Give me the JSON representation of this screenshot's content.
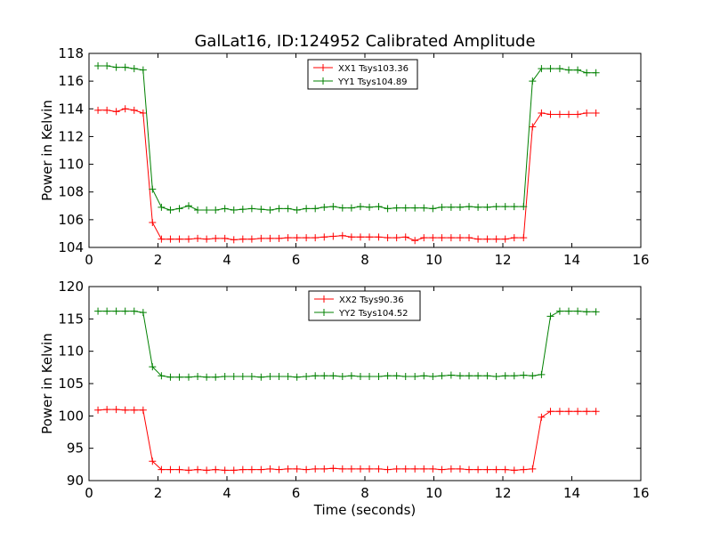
{
  "figure": {
    "title": "GalLat16, ID:124952 Calibrated Amplitude",
    "xlabel": "Time (seconds)"
  },
  "chart_data": [
    {
      "type": "line",
      "ylabel": "Power in Kelvin",
      "xlim": [
        0,
        16
      ],
      "ylim": [
        104,
        118
      ],
      "xticks": [
        0,
        2,
        4,
        6,
        8,
        10,
        12,
        14,
        16
      ],
      "yticks": [
        104,
        106,
        108,
        110,
        112,
        114,
        116,
        118
      ],
      "legend_position": "top-center",
      "grid": false,
      "x": [
        0.26,
        0.52,
        0.79,
        1.05,
        1.31,
        1.57,
        1.84,
        2.1,
        2.36,
        2.62,
        2.89,
        3.15,
        3.41,
        3.67,
        3.94,
        4.2,
        4.46,
        4.72,
        4.99,
        5.25,
        5.51,
        5.77,
        6.03,
        6.3,
        6.56,
        6.82,
        7.08,
        7.35,
        7.61,
        7.87,
        8.13,
        8.4,
        8.66,
        8.92,
        9.18,
        9.45,
        9.71,
        9.97,
        10.23,
        10.5,
        10.76,
        11.02,
        11.28,
        11.55,
        11.81,
        12.07,
        12.33,
        12.6,
        12.86,
        13.12,
        13.38,
        13.65,
        13.91,
        14.17,
        14.43,
        14.7
      ],
      "series": [
        {
          "name": "XX1 Tsys103.36",
          "color": "#ff0000",
          "values": [
            113.9,
            113.9,
            113.8,
            114.0,
            113.9,
            113.7,
            105.8,
            104.6,
            104.6,
            104.6,
            104.6,
            104.65,
            104.6,
            104.65,
            104.65,
            104.55,
            104.6,
            104.6,
            104.65,
            104.65,
            104.65,
            104.7,
            104.7,
            104.7,
            104.7,
            104.75,
            104.8,
            104.85,
            104.75,
            104.75,
            104.75,
            104.75,
            104.7,
            104.7,
            104.75,
            104.5,
            104.7,
            104.7,
            104.7,
            104.7,
            104.7,
            104.7,
            104.6,
            104.6,
            104.6,
            104.6,
            104.7,
            104.7,
            112.7,
            113.7,
            113.6,
            113.6,
            113.6,
            113.6,
            113.7,
            113.7
          ]
        },
        {
          "name": "YY1 Tsys104.89",
          "color": "#008000",
          "values": [
            117.1,
            117.1,
            117.0,
            117.0,
            116.9,
            116.8,
            108.2,
            106.9,
            106.7,
            106.8,
            107.0,
            106.7,
            106.7,
            106.7,
            106.8,
            106.7,
            106.75,
            106.8,
            106.75,
            106.7,
            106.8,
            106.8,
            106.7,
            106.8,
            106.8,
            106.9,
            106.95,
            106.85,
            106.85,
            106.95,
            106.9,
            106.95,
            106.8,
            106.85,
            106.85,
            106.85,
            106.85,
            106.8,
            106.9,
            106.9,
            106.9,
            106.95,
            106.9,
            106.9,
            106.95,
            106.95,
            106.95,
            106.95,
            116.0,
            116.9,
            116.9,
            116.9,
            116.8,
            116.8,
            116.6,
            116.6
          ]
        }
      ]
    },
    {
      "type": "line",
      "ylabel": "Power in Kelvin",
      "xlabel": "Time (seconds)",
      "xlim": [
        0,
        16
      ],
      "ylim": [
        90,
        120
      ],
      "xticks": [
        0,
        2,
        4,
        6,
        8,
        10,
        12,
        14,
        16
      ],
      "yticks": [
        90,
        95,
        100,
        105,
        110,
        115,
        120
      ],
      "legend_position": "top-center",
      "grid": false,
      "x": [
        0.26,
        0.52,
        0.79,
        1.05,
        1.31,
        1.57,
        1.84,
        2.1,
        2.36,
        2.62,
        2.89,
        3.15,
        3.41,
        3.67,
        3.94,
        4.2,
        4.46,
        4.72,
        4.99,
        5.25,
        5.51,
        5.77,
        6.03,
        6.3,
        6.56,
        6.82,
        7.08,
        7.35,
        7.61,
        7.87,
        8.13,
        8.4,
        8.66,
        8.92,
        9.18,
        9.45,
        9.71,
        9.97,
        10.23,
        10.5,
        10.76,
        11.02,
        11.28,
        11.55,
        11.81,
        12.07,
        12.33,
        12.6,
        12.86,
        13.12,
        13.38,
        13.65,
        13.91,
        14.17,
        14.43,
        14.7
      ],
      "series": [
        {
          "name": "XX2 Tsys90.36",
          "color": "#ff0000",
          "values": [
            100.9,
            101.0,
            101.0,
            100.9,
            100.9,
            100.9,
            93.0,
            91.7,
            91.7,
            91.7,
            91.6,
            91.7,
            91.6,
            91.7,
            91.6,
            91.6,
            91.7,
            91.7,
            91.7,
            91.8,
            91.7,
            91.8,
            91.8,
            91.7,
            91.8,
            91.8,
            91.9,
            91.8,
            91.8,
            91.8,
            91.8,
            91.8,
            91.7,
            91.8,
            91.8,
            91.8,
            91.8,
            91.8,
            91.7,
            91.8,
            91.8,
            91.7,
            91.7,
            91.7,
            91.7,
            91.7,
            91.6,
            91.7,
            91.8,
            99.8,
            100.7,
            100.7,
            100.7,
            100.7,
            100.7,
            100.7
          ]
        },
        {
          "name": "YY2 Tsys104.52",
          "color": "#008000",
          "values": [
            116.2,
            116.2,
            116.2,
            116.2,
            116.2,
            116.0,
            107.6,
            106.2,
            106.0,
            106.0,
            106.0,
            106.1,
            106.0,
            106.0,
            106.1,
            106.1,
            106.1,
            106.1,
            106.0,
            106.1,
            106.1,
            106.1,
            106.0,
            106.1,
            106.2,
            106.2,
            106.2,
            106.1,
            106.2,
            106.1,
            106.1,
            106.1,
            106.2,
            106.2,
            106.1,
            106.1,
            106.2,
            106.1,
            106.2,
            106.3,
            106.2,
            106.2,
            106.2,
            106.2,
            106.1,
            106.2,
            106.2,
            106.3,
            106.2,
            106.4,
            115.4,
            116.2,
            116.2,
            116.2,
            116.1,
            116.1
          ]
        }
      ]
    }
  ]
}
